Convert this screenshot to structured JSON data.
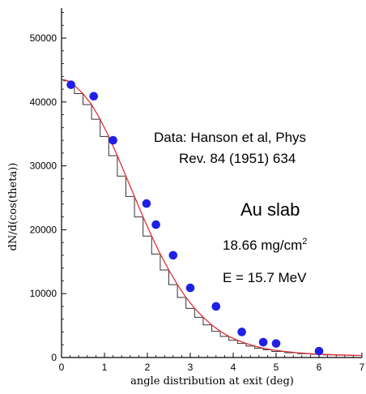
{
  "chart_data": {
    "type": "scatter",
    "xlabel": "angle distribution at exit (deg)",
    "ylabel": "dN/d(cos(theta))",
    "xlim": [
      0,
      7
    ],
    "ylim": [
      0,
      55000
    ],
    "xticks": [
      "0",
      "1",
      "2",
      "3",
      "4",
      "5",
      "6",
      "7"
    ],
    "yticks": [
      "0",
      "10000",
      "20000",
      "30000",
      "40000",
      "50000"
    ],
    "grid": false,
    "colors": {
      "data": "#1f1fe6",
      "model": "#e0303a",
      "axis": "#000000"
    },
    "data_points": {
      "x": [
        0.22,
        0.75,
        1.2,
        1.98,
        2.2,
        2.6,
        3.0,
        3.6,
        4.2,
        4.7,
        5.0,
        6.0
      ],
      "y": [
        42700,
        40900,
        34000,
        24100,
        20800,
        16000,
        10900,
        8000,
        4000,
        2400,
        2200,
        1000
      ]
    },
    "model_curve": {
      "x": [
        0.05,
        0.15,
        0.3,
        0.5,
        0.7,
        0.9,
        1.1,
        1.3,
        1.5,
        1.7,
        1.9,
        2.1,
        2.3,
        2.5,
        2.7,
        2.9,
        3.1,
        3.3,
        3.5,
        3.7,
        3.9,
        4.1,
        4.3,
        4.5,
        4.7,
        4.9,
        5.2,
        5.5,
        5.8,
        6.1,
        6.4,
        6.7,
        7.0
      ],
      "y": [
        43500,
        43300,
        42600,
        41300,
        39600,
        37300,
        34600,
        31600,
        28400,
        25200,
        22000,
        19000,
        16200,
        13700,
        11400,
        9400,
        7700,
        6300,
        5100,
        4100,
        3300,
        2700,
        2200,
        1800,
        1450,
        1200,
        950,
        750,
        600,
        500,
        420,
        360,
        320
      ]
    },
    "annotations": {
      "source_line1": "Data: Hanson et al, Phys",
      "source_line2": "Rev. 84 (1951) 634",
      "target": "Au slab",
      "thickness_value": "18.66 mg/cm",
      "thickness_exp": "2",
      "energy": "E = 15.7 MeV"
    }
  }
}
